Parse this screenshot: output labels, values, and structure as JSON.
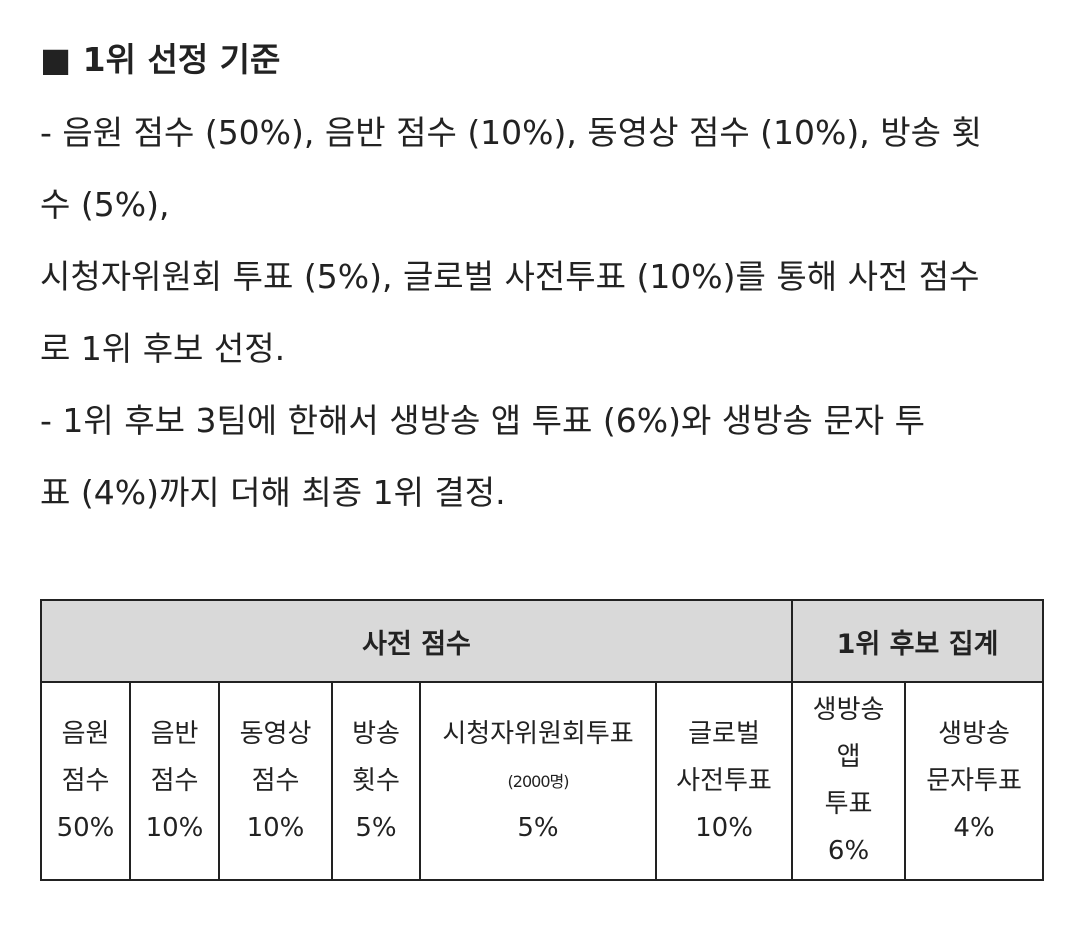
{
  "heading": "■ 1위 선정 기준",
  "paragraph_lines": [
    "- 음원 점수 (50%), 음반 점수 (10%), 동영상 점수 (10%), 방송 횟",
    "수 (5%),",
    "시청자위원회 투표 (5%), 글로벌 사전투표 (10%)를 통해 사전 점수",
    "로 1위 후보 선정.",
    "- 1위 후보 3팀에 한해서 생방송 앱 투표 (6%)와 생방송 문자 투",
    "표 (4%)까지 더해 최종 1위 결정."
  ],
  "table": {
    "header": [
      "사전 점수",
      "1위 후보 집계"
    ],
    "cells": [
      [
        "음원",
        "점수",
        "50%"
      ],
      [
        "음반",
        "점수",
        "10%"
      ],
      [
        "동영상",
        "점수",
        "10%"
      ],
      [
        "방송",
        "횟수",
        "5%"
      ],
      [
        "시청자위원회투표",
        "(2000명)",
        "5%"
      ],
      [
        "글로벌",
        "사전투표",
        "10%"
      ],
      [
        "생방송",
        "앱",
        "투표",
        "6%"
      ],
      [
        "생방송",
        "문자투표",
        "4%"
      ]
    ]
  }
}
